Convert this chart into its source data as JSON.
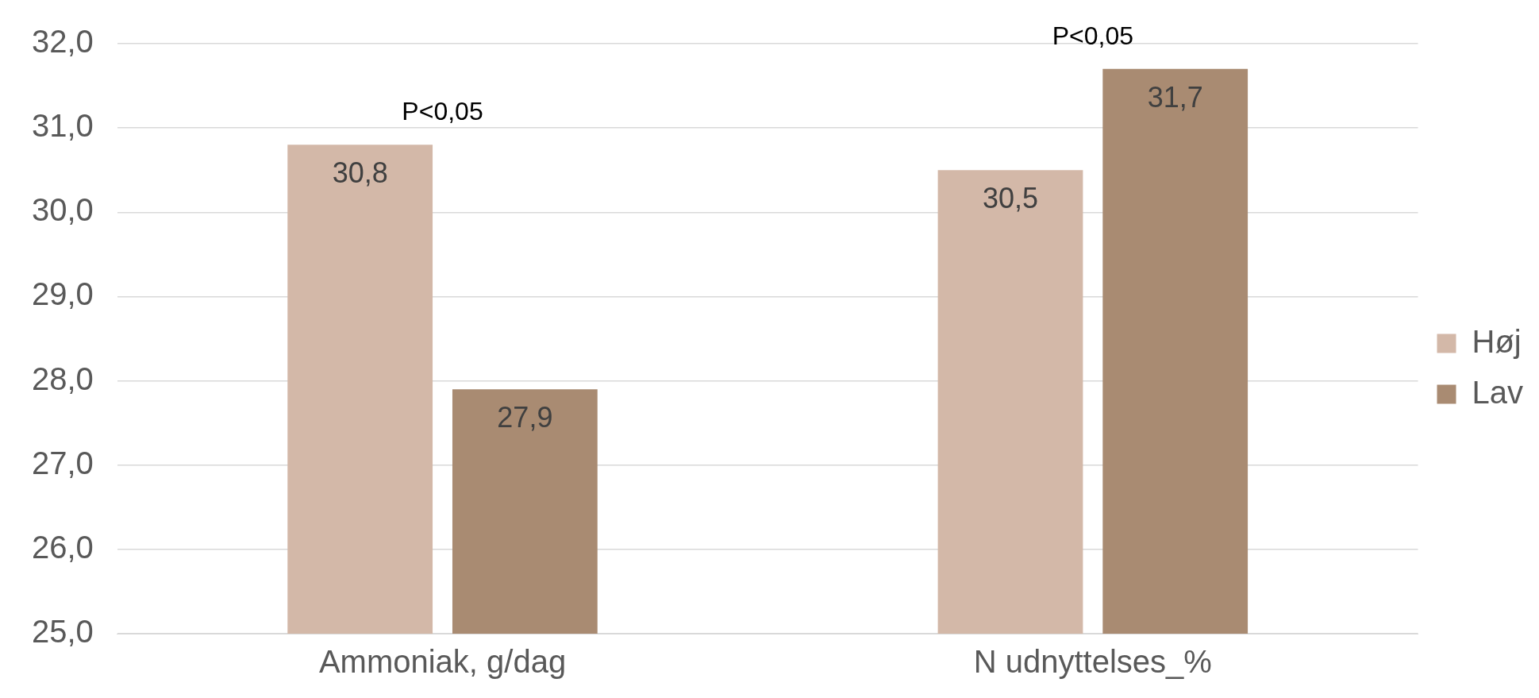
{
  "chart_data": {
    "type": "bar",
    "categories": [
      "Ammoniak, g/dag",
      "N udnyttelses_%"
    ],
    "series": [
      {
        "name": "Høj",
        "color": "#d3b8a8",
        "values": [
          30.8,
          30.5
        ],
        "value_labels": [
          "30,8",
          "30,5"
        ]
      },
      {
        "name": "Lav",
        "color": "#a98b72",
        "values": [
          27.9,
          31.7
        ],
        "value_labels": [
          "27,9",
          "31,7"
        ]
      }
    ],
    "ylim": [
      25,
      32
    ],
    "yticks": [
      {
        "value": 25,
        "label": "25,0"
      },
      {
        "value": 26,
        "label": "26,0"
      },
      {
        "value": 27,
        "label": "27,0"
      },
      {
        "value": 28,
        "label": "28,0"
      },
      {
        "value": 29,
        "label": "29,0"
      },
      {
        "value": 30,
        "label": "30,0"
      },
      {
        "value": 31,
        "label": "31,0"
      },
      {
        "value": 32,
        "label": "32,0"
      }
    ],
    "grid": "y",
    "legend": "right",
    "annotations": [
      "P<0,05",
      "P<0,05"
    ]
  }
}
